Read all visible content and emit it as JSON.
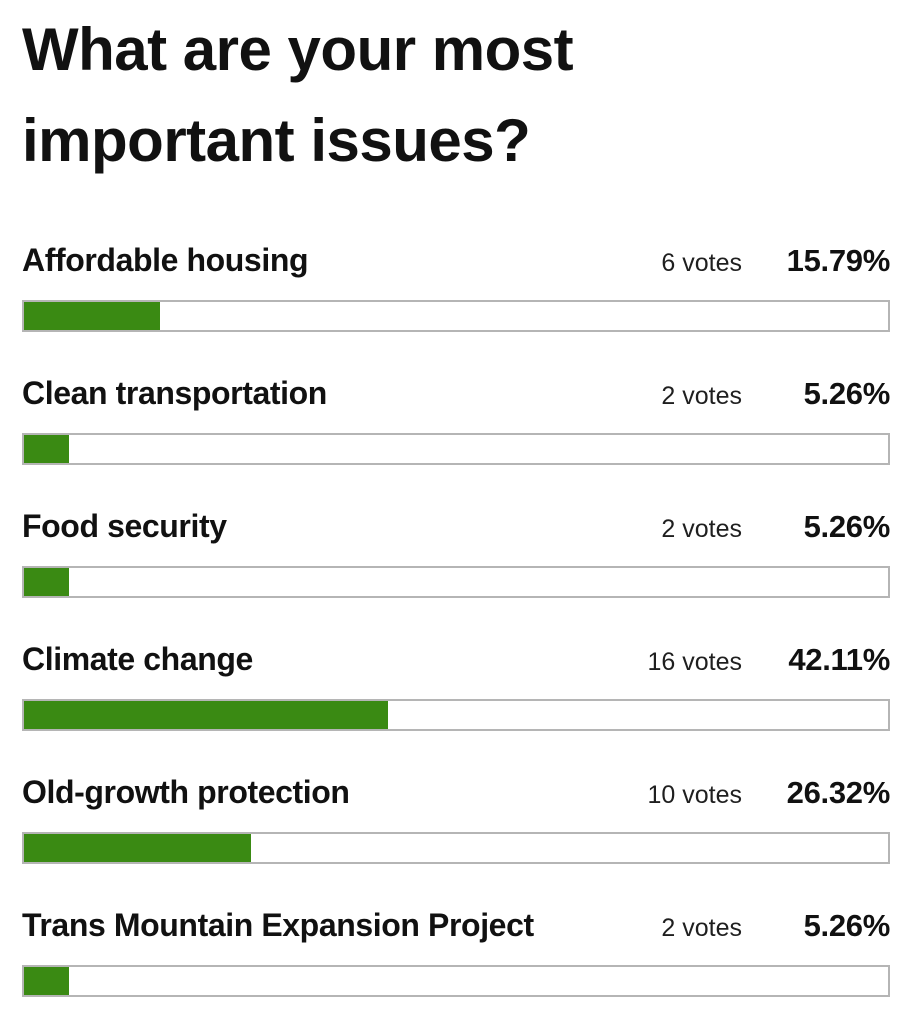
{
  "poll": {
    "title": "What are your most important issues?",
    "bar_fill_color": "#3a8a13",
    "bar_track_color": "#ffffff",
    "bar_border_color": "#b5b5b5",
    "text_color": "#111111",
    "options": [
      {
        "label": "Affordable housing",
        "votes_text": "6 votes",
        "percent_text": "15.79%",
        "votes": 6,
        "percent": 15.79
      },
      {
        "label": "Clean transportation",
        "votes_text": "2 votes",
        "percent_text": "5.26%",
        "votes": 2,
        "percent": 5.26
      },
      {
        "label": "Food security",
        "votes_text": "2 votes",
        "percent_text": "5.26%",
        "votes": 2,
        "percent": 5.26
      },
      {
        "label": "Climate change",
        "votes_text": "16 votes",
        "percent_text": "42.11%",
        "votes": 16,
        "percent": 42.11
      },
      {
        "label": "Old-growth protection",
        "votes_text": "10 votes",
        "percent_text": "26.32%",
        "votes": 10,
        "percent": 26.32
      },
      {
        "label": "Trans Mountain Expansion Project",
        "votes_text": "2 votes",
        "percent_text": "5.26%",
        "votes": 2,
        "percent": 5.26
      }
    ]
  },
  "chart_data": {
    "type": "bar",
    "orientation": "horizontal",
    "title": "What are your most important issues?",
    "categories": [
      "Affordable housing",
      "Clean transportation",
      "Food security",
      "Climate change",
      "Old-growth protection",
      "Trans Mountain Expansion Project"
    ],
    "series": [
      {
        "name": "votes",
        "values": [
          6,
          2,
          2,
          16,
          10,
          2
        ]
      },
      {
        "name": "percent",
        "values": [
          15.79,
          5.26,
          5.26,
          42.11,
          26.32,
          5.26
        ]
      }
    ],
    "value_axis_range": [
      0,
      100
    ],
    "grid": false,
    "legend": false,
    "data_labels": "votes and percent shown right-aligned per bar",
    "bar_color": "#3a8a13"
  }
}
